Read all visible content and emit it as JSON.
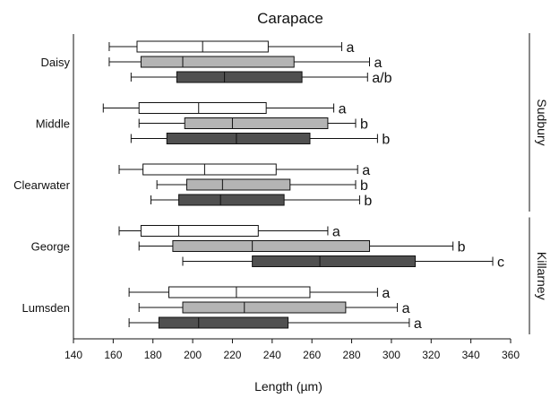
{
  "chart_data": {
    "type": "boxplot",
    "orientation": "horizontal",
    "title": "Carapace",
    "xlabel": "Length (µm)",
    "xlim": [
      140,
      360
    ],
    "xticks": [
      140,
      160,
      180,
      200,
      220,
      240,
      260,
      280,
      300,
      320,
      340,
      360
    ],
    "grid": false,
    "series_colors": [
      "#ffffff",
      "#b4b4b4",
      "#505050"
    ],
    "groups": [
      {
        "name": "Daisy",
        "boxes": [
          {
            "min": 158,
            "q1": 172,
            "median": 205,
            "q3": 238,
            "max": 275,
            "label": "a"
          },
          {
            "min": 158,
            "q1": 174,
            "median": 195,
            "q3": 251,
            "max": 289,
            "label": "a"
          },
          {
            "min": 169,
            "q1": 192,
            "median": 216,
            "q3": 255,
            "max": 288,
            "label": "a/b"
          }
        ]
      },
      {
        "name": "Middle",
        "boxes": [
          {
            "min": 155,
            "q1": 173,
            "median": 203,
            "q3": 237,
            "max": 271,
            "label": "a"
          },
          {
            "min": 173,
            "q1": 196,
            "median": 220,
            "q3": 268,
            "max": 282,
            "label": "b"
          },
          {
            "min": 169,
            "q1": 187,
            "median": 222,
            "q3": 259,
            "max": 293,
            "label": "b"
          }
        ]
      },
      {
        "name": "Clearwater",
        "boxes": [
          {
            "min": 163,
            "q1": 175,
            "median": 206,
            "q3": 242,
            "max": 283,
            "label": "a"
          },
          {
            "min": 182,
            "q1": 197,
            "median": 215,
            "q3": 249,
            "max": 282,
            "label": "b"
          },
          {
            "min": 179,
            "q1": 193,
            "median": 214,
            "q3": 246,
            "max": 284,
            "label": "b"
          }
        ]
      },
      {
        "name": "George",
        "boxes": [
          {
            "min": 163,
            "q1": 174,
            "median": 193,
            "q3": 233,
            "max": 268,
            "label": "a"
          },
          {
            "min": 173,
            "q1": 190,
            "median": 230,
            "q3": 289,
            "max": 331,
            "label": "b"
          },
          {
            "min": 195,
            "q1": 230,
            "median": 264,
            "q3": 312,
            "max": 351,
            "label": "c"
          }
        ]
      },
      {
        "name": "Lumsden",
        "boxes": [
          {
            "min": 168,
            "q1": 188,
            "median": 222,
            "q3": 259,
            "max": 293,
            "label": "a"
          },
          {
            "min": 173,
            "q1": 195,
            "median": 226,
            "q3": 277,
            "max": 303,
            "label": "a"
          },
          {
            "min": 168,
            "q1": 183,
            "median": 203,
            "q3": 248,
            "max": 309,
            "label": "a"
          }
        ]
      }
    ],
    "regions": [
      {
        "name": "Sudbury",
        "groups": [
          "Daisy",
          "Middle",
          "Clearwater"
        ]
      },
      {
        "name": "Killarney",
        "groups": [
          "George",
          "Lumsden"
        ]
      }
    ]
  }
}
